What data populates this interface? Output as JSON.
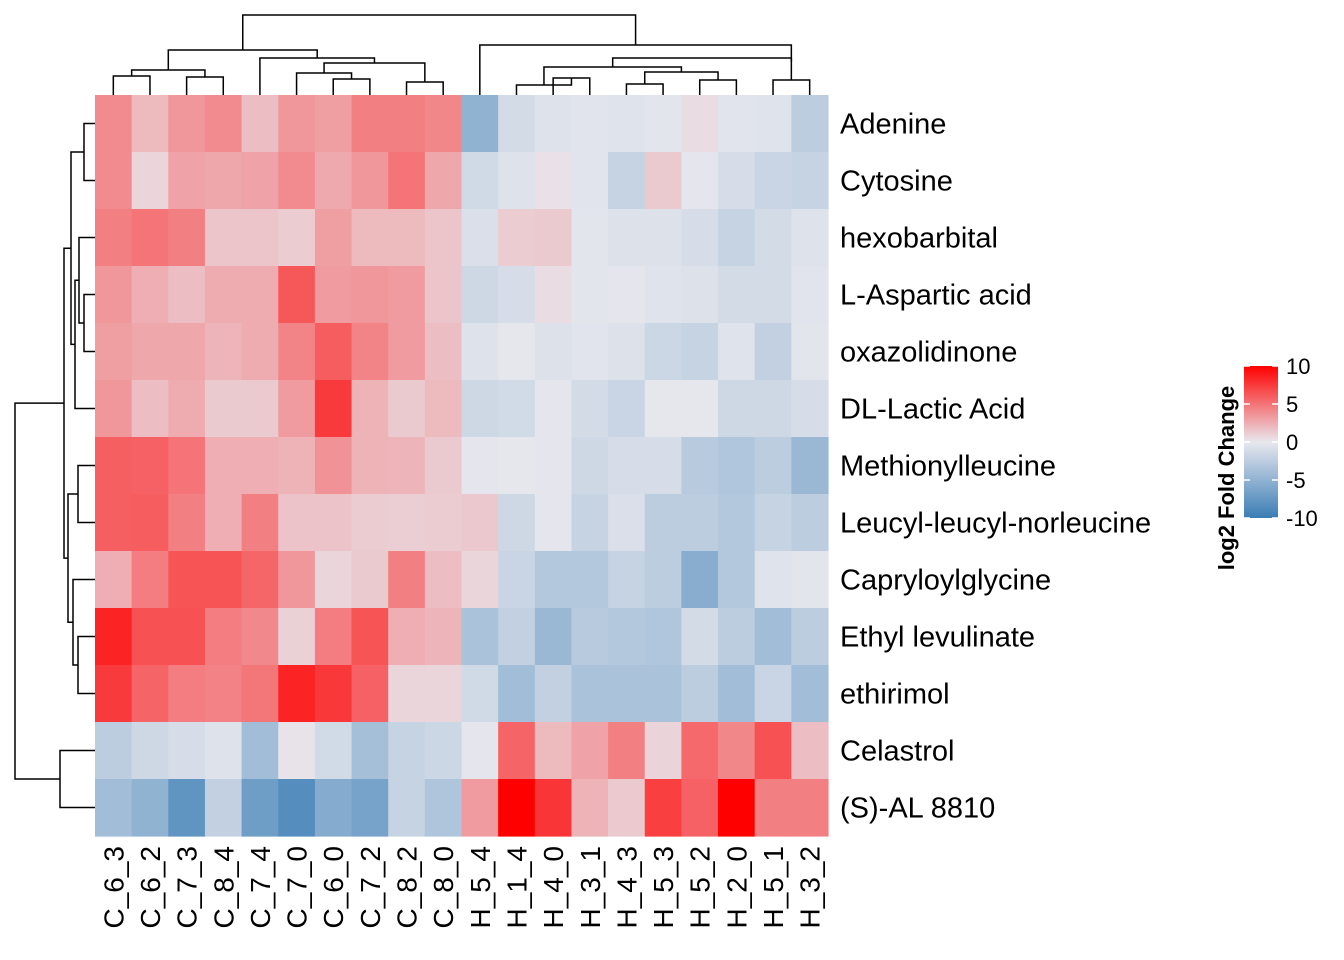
{
  "chart_data": {
    "type": "heatmap",
    "rows": [
      "Adenine",
      "Cytosine",
      "hexobarbital",
      "L-Aspartic acid",
      "oxazolidinone",
      "DL-Lactic Acid",
      "Methionylleucine",
      "Leucyl-leucyl-norleucine",
      "Capryloylglycine",
      "Ethyl levulinate",
      "ethirimol",
      "Celastrol",
      "(S)-AL 8810"
    ],
    "columns": [
      "C_6_3",
      "C_6_2",
      "C_7_3",
      "C_8_4",
      "C_7_4",
      "C_7_0",
      "C_6_0",
      "C_7_2",
      "C_8_2",
      "C_8_0",
      "H_5_4",
      "H_1_4",
      "H_4_0",
      "H_3_1",
      "H_4_3",
      "H_5_3",
      "H_5_2",
      "H_2_0",
      "H_5_1",
      "H_3_2"
    ],
    "values": [
      [
        4,
        2,
        3.5,
        4,
        1.8,
        3.5,
        3.2,
        4.5,
        4.5,
        4.2,
        -5,
        -1.2,
        -0.6,
        -0.4,
        -0.5,
        -0.3,
        0.5,
        -0.4,
        -0.5,
        -2.5
      ],
      [
        4,
        0.8,
        3,
        2.8,
        3,
        4,
        2.7,
        3.5,
        5,
        2.8,
        -1.4,
        -0.6,
        0.3,
        -0.4,
        -2,
        1.3,
        -0.2,
        -1,
        -1.8,
        -2
      ],
      [
        4.5,
        5,
        4.5,
        1.5,
        1.5,
        1.2,
        3.2,
        2,
        2,
        1.5,
        -0.8,
        1.2,
        1.3,
        -0.3,
        -0.7,
        -0.7,
        -1,
        -2,
        -1.2,
        -0.6
      ],
      [
        3.5,
        2.5,
        1.8,
        2.6,
        2.6,
        6.2,
        3.3,
        3.5,
        3.3,
        1.5,
        -1.5,
        -1,
        0.5,
        -0.3,
        -0.2,
        -0.5,
        -0.7,
        -1.2,
        -1.2,
        -0.4
      ],
      [
        3.2,
        2.8,
        2.8,
        2.2,
        2.6,
        4.3,
        6,
        4.3,
        3.3,
        1.8,
        -0.6,
        -0.1,
        -0.7,
        -0.4,
        -0.7,
        -1.6,
        -2,
        -0.5,
        -2.2,
        -0.3
      ],
      [
        3.5,
        1.8,
        2.6,
        1.3,
        1.3,
        3.3,
        7.5,
        2.3,
        1.3,
        2,
        -1.5,
        -1.3,
        -0.2,
        -1.2,
        -1.8,
        -0.1,
        -0.1,
        -1.5,
        -1.5,
        -1
      ],
      [
        5.9,
        5.8,
        5,
        2.5,
        2.5,
        2.3,
        3.7,
        2.3,
        2.2,
        1.3,
        -0.2,
        -0.1,
        -0.2,
        -1.5,
        -1,
        -1,
        -2.8,
        -3.2,
        -2.5,
        -4.5
      ],
      [
        5.9,
        6,
        4.5,
        2.5,
        4.5,
        1.6,
        1.6,
        1.2,
        1.1,
        1.2,
        1.4,
        -1.5,
        -0.2,
        -2,
        -0.8,
        -2.5,
        -2.5,
        -3,
        -2,
        -2.5
      ],
      [
        2.5,
        4.6,
        6.4,
        6.4,
        5.6,
        3.5,
        0.8,
        1.3,
        4.5,
        1.8,
        0.8,
        -1.8,
        -3,
        -3,
        -2,
        -2.5,
        -5.5,
        -3,
        -0.5,
        -0.3
      ],
      [
        8.5,
        6.5,
        6.5,
        4.6,
        4.1,
        1,
        4.6,
        6.4,
        2.5,
        2.2,
        -3.5,
        -2.2,
        -4.5,
        -2.8,
        -3,
        -3.2,
        -1.2,
        -2.5,
        -4,
        -2.5
      ],
      [
        7.5,
        5.7,
        4.6,
        4.4,
        4.9,
        8.5,
        7.6,
        5.8,
        0.8,
        0.8,
        -1.4,
        -4,
        -2.2,
        -3.5,
        -3.5,
        -3.5,
        -2.5,
        -4,
        -1.8,
        -4
      ],
      [
        -2.5,
        -1.5,
        -1,
        -0.6,
        -4,
        0.2,
        -1.3,
        -3.8,
        -2,
        -1.6,
        -0.2,
        5.7,
        2,
        3,
        4.5,
        0.9,
        5.5,
        4.2,
        6.5,
        1.8
      ],
      [
        -4,
        -5,
        -7.8,
        -2.2,
        -7,
        -8.5,
        -5.7,
        -6.5,
        -2,
        -3.3,
        3.3,
        11,
        7.7,
        2.3,
        1.3,
        7.3,
        5.8,
        11,
        4.5,
        4.5
      ]
    ],
    "legend": {
      "title": "log2 Fold Change",
      "ticks": [
        10,
        5,
        0,
        -5,
        -10
      ],
      "placement": "right"
    },
    "colors": {
      "high": "#ff0000",
      "mid": "#e8e8ee",
      "low": "#3a7db5"
    },
    "dendrogram": {
      "rows": "left",
      "columns": "top"
    }
  }
}
